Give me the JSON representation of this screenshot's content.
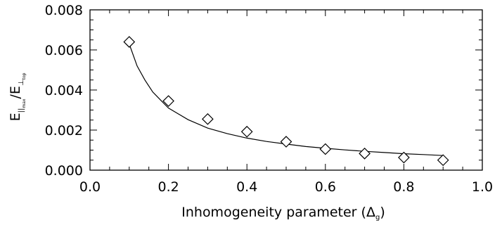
{
  "chart_data": {
    "type": "scatter",
    "title": "",
    "xlabel": "Inhomogeneity parameter",
    "xlabel_symbol": "Δ",
    "xlabel_symbol_sub": "g",
    "ylabel": "E",
    "ylabel_num_sub": "||",
    "ylabel_num_subsub": "max",
    "ylabel_den_sub": "⊥",
    "ylabel_den_subsub": "top",
    "xlim": [
      0.0,
      1.0
    ],
    "ylim": [
      0.0,
      0.008
    ],
    "x_ticks": [
      "0.0",
      "0.2",
      "0.4",
      "0.6",
      "0.8",
      "1.0"
    ],
    "y_ticks": [
      "0.000",
      "0.002",
      "0.004",
      "0.006",
      "0.008"
    ],
    "grid": false,
    "series": [
      {
        "marker": "diamond",
        "x": [
          0.1,
          0.2,
          0.3,
          0.4,
          0.5,
          0.6,
          0.7,
          0.8,
          0.9
        ],
        "y": [
          0.0064,
          0.00345,
          0.00255,
          0.00192,
          0.00142,
          0.00105,
          0.00083,
          0.00063,
          0.0005
        ]
      },
      {
        "style": "line",
        "x": [
          0.1,
          0.12,
          0.14,
          0.16,
          0.18,
          0.2,
          0.25,
          0.3,
          0.35,
          0.4,
          0.45,
          0.5,
          0.55,
          0.6,
          0.65,
          0.7,
          0.75,
          0.8,
          0.85,
          0.9
        ],
        "y": [
          0.0063,
          0.0052,
          0.0045,
          0.0039,
          0.0035,
          0.0031,
          0.00252,
          0.0021,
          0.00182,
          0.0016,
          0.00143,
          0.0013,
          0.00118,
          0.00109,
          0.00101,
          0.00094,
          0.00088,
          0.00082,
          0.00078,
          0.00073
        ]
      }
    ]
  }
}
